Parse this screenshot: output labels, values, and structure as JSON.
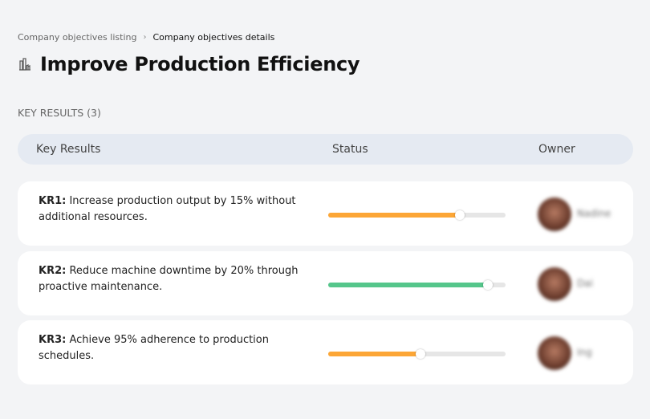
{
  "breadcrumb": {
    "parent": "Company objectives listing",
    "separator": "›",
    "current": "Company objectives details"
  },
  "page": {
    "title": "Improve Production Efficiency",
    "icon": "factory-icon",
    "key_results_label": "KEY RESULTS (3)"
  },
  "table": {
    "headers": [
      "Key Results",
      "Status",
      "Owner"
    ]
  },
  "colors": {
    "orange": "#fca636",
    "green": "#55c68b"
  },
  "key_results": [
    {
      "id": "KR1:",
      "text": " Increase production output by 15% without additional resources.",
      "progress": 74,
      "color": "#fca636",
      "owner": "Nadine"
    },
    {
      "id": "KR2:",
      "text": " Reduce machine downtime by 20% through proactive maintenance.",
      "progress": 90,
      "color": "#55c68b",
      "owner": "Dai"
    },
    {
      "id": "KR3:",
      "text": " Achieve 95% adherence to production schedules.",
      "progress": 52,
      "color": "#fca636",
      "owner": "Ing"
    }
  ]
}
